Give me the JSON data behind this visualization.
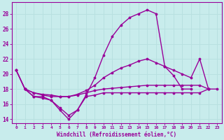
{
  "xlabel": "Windchill (Refroidissement éolien,°C)",
  "bg_color": "#c8ecec",
  "line_color": "#990099",
  "grid_color": "#b8e0e0",
  "xlim": [
    -0.5,
    23.5
  ],
  "ylim": [
    13.5,
    29.5
  ],
  "xticks": [
    0,
    1,
    2,
    3,
    4,
    5,
    6,
    7,
    8,
    9,
    10,
    11,
    12,
    13,
    14,
    15,
    16,
    17,
    18,
    19,
    20,
    21,
    22,
    23
  ],
  "yticks": [
    14,
    16,
    18,
    20,
    22,
    24,
    26,
    28
  ],
  "series": [
    {
      "x": [
        0,
        1,
        2,
        3,
        4,
        5,
        6,
        7,
        8,
        9,
        10,
        11,
        12,
        13,
        14,
        15,
        16,
        17,
        18,
        19,
        20,
        21,
        22,
        23
      ],
      "y": [
        20.5,
        18,
        17,
        17,
        16.5,
        15.2,
        14.0,
        15.2,
        17.2,
        19.5,
        22.5,
        25.0,
        26.5,
        27.5,
        28.0,
        28.5,
        28.0,
        21.0,
        19.8,
        18.0,
        18.0,
        null,
        null,
        null
      ]
    },
    {
      "x": [
        0,
        1,
        2,
        3,
        4,
        5,
        6,
        7,
        8,
        9,
        10,
        11,
        12,
        13,
        14,
        15,
        16,
        17,
        18,
        19,
        20,
        21,
        22,
        23
      ],
      "y": [
        20.5,
        18,
        17.5,
        17.3,
        17.2,
        17.0,
        17.0,
        17.3,
        17.8,
        18.5,
        19.5,
        20.2,
        20.8,
        21.2,
        21.7,
        22.0,
        21.5,
        21.0,
        20.5,
        20.0,
        19.5,
        22.0,
        18.0,
        null
      ]
    },
    {
      "x": [
        0,
        1,
        2,
        3,
        4,
        5,
        6,
        7,
        8,
        9,
        10,
        11,
        12,
        13,
        14,
        15,
        16,
        17,
        18,
        19,
        20,
        21,
        22,
        23
      ],
      "y": [
        20.5,
        18.0,
        17.5,
        17.2,
        17.0,
        17.0,
        17.0,
        17.2,
        17.5,
        17.8,
        18.0,
        18.1,
        18.2,
        18.3,
        18.4,
        18.5,
        18.5,
        18.5,
        18.5,
        18.5,
        18.5,
        18.5,
        18.0,
        null
      ]
    },
    {
      "x": [
        1,
        2,
        3,
        4,
        5,
        6,
        7,
        8,
        9,
        10,
        11,
        12,
        13,
        14,
        15,
        16,
        17,
        18,
        19,
        20,
        21,
        22,
        23
      ],
      "y": [
        18.0,
        17.0,
        16.8,
        16.5,
        15.5,
        14.5,
        15.2,
        17.0,
        17.2,
        17.5,
        17.5,
        17.5,
        17.5,
        17.5,
        17.5,
        17.5,
        17.5,
        17.5,
        17.5,
        17.5,
        17.5,
        18.0,
        18.0
      ]
    }
  ],
  "marker": ".",
  "markersize": 3.5,
  "linewidth": 1.0
}
